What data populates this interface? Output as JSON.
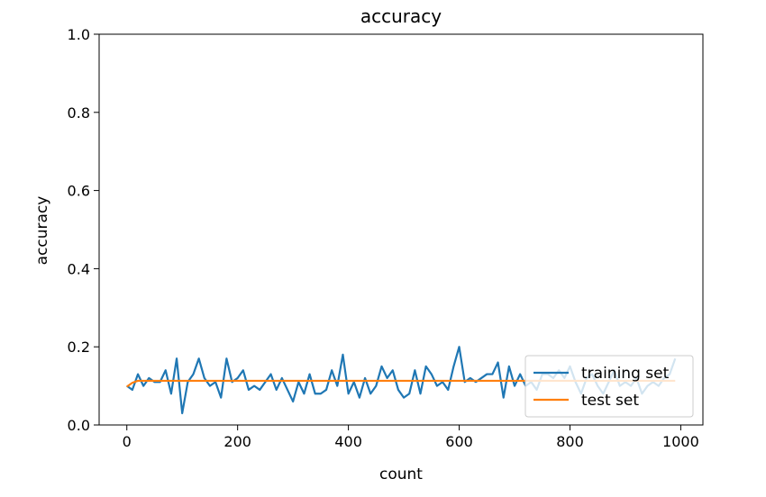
{
  "chart_data": {
    "type": "line",
    "title": "accuracy",
    "xlabel": "count",
    "ylabel": "accuracy",
    "xlim": [
      -50,
      1040
    ],
    "ylim": [
      0.0,
      1.0
    ],
    "xticks": [
      0,
      200,
      400,
      600,
      800,
      1000
    ],
    "xtick_labels": [
      "0",
      "200",
      "400",
      "600",
      "800",
      "1000"
    ],
    "yticks": [
      0.0,
      0.2,
      0.4,
      0.6,
      0.8,
      1.0
    ],
    "ytick_labels": [
      "0.0",
      "0.2",
      "0.4",
      "0.6",
      "0.8",
      "1.0"
    ],
    "grid": false,
    "legend_position": "lower right",
    "series": [
      {
        "name": "training set",
        "color": "#1f77b4",
        "x": [
          0,
          10,
          20,
          30,
          40,
          50,
          60,
          70,
          80,
          90,
          100,
          110,
          120,
          130,
          140,
          150,
          160,
          170,
          180,
          190,
          200,
          210,
          220,
          230,
          240,
          250,
          260,
          270,
          280,
          290,
          300,
          310,
          320,
          330,
          340,
          350,
          360,
          370,
          380,
          390,
          400,
          410,
          420,
          430,
          440,
          450,
          460,
          470,
          480,
          490,
          500,
          510,
          520,
          530,
          540,
          550,
          560,
          570,
          580,
          590,
          600,
          610,
          620,
          630,
          640,
          650,
          660,
          670,
          680,
          690,
          700,
          710,
          720,
          730,
          740,
          750,
          760,
          770,
          780,
          790,
          800,
          810,
          820,
          830,
          840,
          850,
          860,
          870,
          880,
          890,
          900,
          910,
          920,
          930,
          940,
          950,
          960,
          970,
          980,
          990
        ],
        "y": [
          0.1,
          0.09,
          0.13,
          0.1,
          0.12,
          0.11,
          0.11,
          0.14,
          0.08,
          0.17,
          0.03,
          0.11,
          0.13,
          0.17,
          0.12,
          0.1,
          0.11,
          0.07,
          0.17,
          0.11,
          0.12,
          0.14,
          0.09,
          0.1,
          0.09,
          0.11,
          0.13,
          0.09,
          0.12,
          0.09,
          0.06,
          0.11,
          0.08,
          0.13,
          0.08,
          0.08,
          0.09,
          0.14,
          0.1,
          0.18,
          0.08,
          0.11,
          0.07,
          0.12,
          0.08,
          0.1,
          0.15,
          0.12,
          0.14,
          0.09,
          0.07,
          0.08,
          0.14,
          0.08,
          0.15,
          0.13,
          0.1,
          0.11,
          0.09,
          0.15,
          0.2,
          0.11,
          0.12,
          0.11,
          0.12,
          0.13,
          0.13,
          0.16,
          0.07,
          0.15,
          0.1,
          0.13,
          0.1,
          0.11,
          0.09,
          0.13,
          0.13,
          0.12,
          0.14,
          0.12,
          0.15,
          0.11,
          0.08,
          0.12,
          0.13,
          0.1,
          0.08,
          0.11,
          0.14,
          0.1,
          0.11,
          0.1,
          0.12,
          0.08,
          0.1,
          0.11,
          0.1,
          0.12,
          0.13,
          0.17
        ]
      },
      {
        "name": "test set",
        "color": "#ff7f0e",
        "x": [
          0,
          10,
          20,
          30,
          40,
          50,
          60,
          70,
          80,
          90,
          100,
          110,
          120,
          130,
          140,
          150,
          160,
          170,
          180,
          190,
          200,
          210,
          220,
          230,
          240,
          250,
          260,
          270,
          280,
          290,
          300,
          310,
          320,
          330,
          340,
          350,
          360,
          370,
          380,
          390,
          400,
          410,
          420,
          430,
          440,
          450,
          460,
          470,
          480,
          490,
          500,
          510,
          520,
          530,
          540,
          550,
          560,
          570,
          580,
          590,
          600,
          610,
          620,
          630,
          640,
          650,
          660,
          670,
          680,
          690,
          700,
          710,
          720,
          730,
          740,
          750,
          760,
          770,
          780,
          790,
          800,
          810,
          820,
          830,
          840,
          850,
          860,
          870,
          880,
          890,
          900,
          910,
          920,
          930,
          940,
          950,
          960,
          970,
          980,
          990
        ],
        "y": [
          0.098,
          0.108,
          0.113,
          0.113,
          0.113,
          0.113,
          0.113,
          0.113,
          0.113,
          0.113,
          0.113,
          0.113,
          0.113,
          0.113,
          0.113,
          0.113,
          0.113,
          0.113,
          0.113,
          0.113,
          0.113,
          0.113,
          0.113,
          0.113,
          0.113,
          0.113,
          0.113,
          0.113,
          0.113,
          0.113,
          0.113,
          0.113,
          0.113,
          0.113,
          0.113,
          0.113,
          0.113,
          0.113,
          0.113,
          0.113,
          0.113,
          0.113,
          0.113,
          0.113,
          0.113,
          0.113,
          0.113,
          0.113,
          0.113,
          0.113,
          0.113,
          0.113,
          0.113,
          0.113,
          0.113,
          0.113,
          0.113,
          0.113,
          0.113,
          0.113,
          0.113,
          0.113,
          0.113,
          0.113,
          0.113,
          0.113,
          0.113,
          0.113,
          0.113,
          0.113,
          0.113,
          0.113,
          0.113,
          0.113,
          0.113,
          0.113,
          0.113,
          0.113,
          0.113,
          0.113,
          0.113,
          0.113,
          0.113,
          0.113,
          0.113,
          0.113,
          0.113,
          0.113,
          0.113,
          0.113,
          0.113,
          0.113,
          0.113,
          0.113,
          0.113,
          0.113,
          0.113,
          0.113,
          0.113,
          0.113
        ]
      }
    ]
  }
}
